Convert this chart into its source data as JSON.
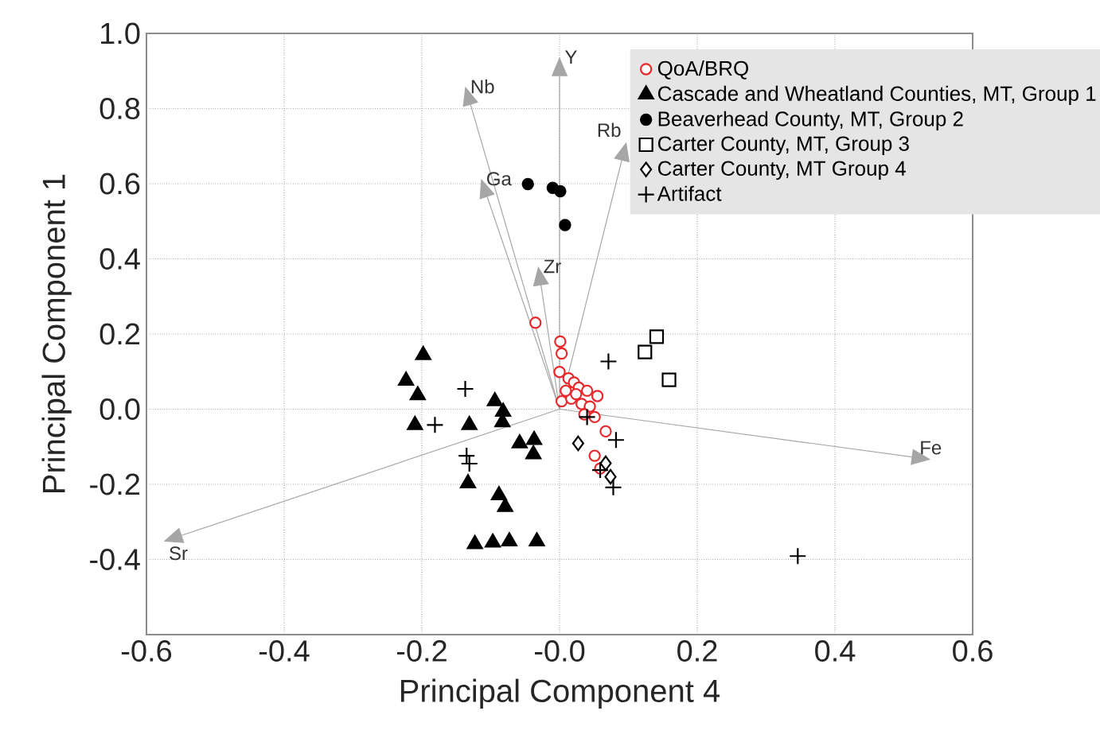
{
  "chart_data": {
    "type": "scatter",
    "xlabel": "Principal Component 4",
    "ylabel": "Principal Component 1",
    "xlim": [
      -0.6,
      0.6
    ],
    "ylim": [
      -0.6,
      1.0
    ],
    "xticks": [
      -0.6,
      -0.4,
      -0.2,
      {
        "value": 0,
        "label": "-0.0"
      },
      0.2,
      0.4,
      0.6
    ],
    "yticks": [
      -0.4,
      -0.2,
      {
        "value": 0,
        "label": "0.0"
      },
      0.2,
      0.4,
      0.6,
      0.8,
      {
        "value": 1,
        "label": "1.0"
      }
    ],
    "grid": true,
    "legend": "top right",
    "series": [
      {
        "name": "QoA/BRQ",
        "marker": "circle-open",
        "color": "#e8282b",
        "x": [
          -0.035,
          0.001,
          0.003,
          0.0,
          0.013,
          0.021,
          0.028,
          0.04,
          0.055,
          0.003,
          0.017,
          0.032,
          0.044,
          0.036,
          0.051,
          0.067,
          0.051,
          0.059,
          0.009,
          0.024
        ],
        "values": [
          0.23,
          0.18,
          0.148,
          0.099,
          0.082,
          0.071,
          0.057,
          0.049,
          0.035,
          0.021,
          0.028,
          0.014,
          0.007,
          -0.014,
          -0.021,
          -0.059,
          -0.124,
          -0.158,
          0.049,
          0.04
        ]
      },
      {
        "name": "Cascade and Wheatland Counties, MT, Group 1",
        "marker": "triangle",
        "color": "#000000",
        "x": [
          -0.198,
          -0.223,
          -0.206,
          -0.21,
          -0.131,
          -0.094,
          -0.082,
          -0.083,
          -0.058,
          -0.037,
          -0.038,
          -0.133,
          -0.088,
          -0.079,
          -0.123,
          -0.097,
          -0.073,
          -0.033
        ],
        "values": [
          0.144,
          0.076,
          0.037,
          -0.042,
          -0.042,
          0.021,
          -0.007,
          -0.035,
          -0.091,
          -0.082,
          -0.12,
          -0.197,
          -0.229,
          -0.26,
          -0.359,
          -0.355,
          -0.352,
          -0.352
        ]
      },
      {
        "name": "Beaverhead County, MT, Group 2",
        "marker": "circle",
        "color": "#000000",
        "x": [
          -0.046,
          -0.01,
          0.001,
          0.008
        ],
        "values": [
          0.599,
          0.589,
          0.58,
          0.49
        ]
      },
      {
        "name": "Carter County, MT, Group 3",
        "marker": "square-open",
        "color": "#000000",
        "x": [
          0.124,
          0.141,
          0.159
        ],
        "values": [
          0.152,
          0.193,
          0.078
        ]
      },
      {
        "name": "Carter County, MT Group 4",
        "marker": "diamond-open",
        "color": "#000000",
        "x": [
          0.027,
          0.067,
          0.074
        ],
        "values": [
          -0.091,
          -0.144,
          -0.18
        ]
      },
      {
        "name": "Artifact",
        "marker": "cross",
        "color": "#000000",
        "x": [
          -0.137,
          -0.181,
          -0.135,
          -0.131,
          0.071,
          0.082,
          0.078,
          0.346,
          0.04,
          0.059
        ],
        "values": [
          0.054,
          -0.042,
          -0.124,
          -0.145,
          0.127,
          -0.082,
          -0.208,
          -0.391,
          -0.021,
          -0.162
        ]
      }
    ],
    "annotations": [
      "Nb",
      "Y",
      "Rb",
      "Ga",
      "Zr",
      "Sr",
      "Fe"
    ]
  }
}
